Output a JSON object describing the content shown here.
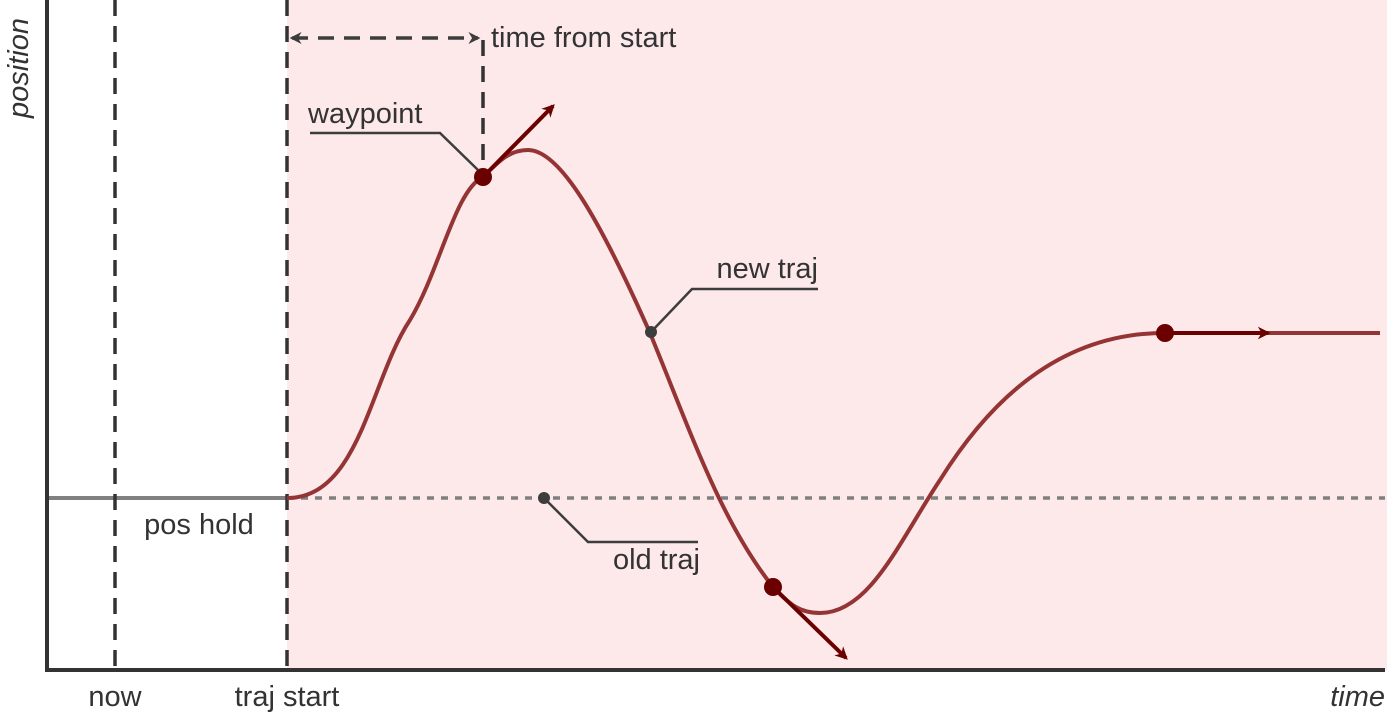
{
  "labels": {
    "y_axis": "position",
    "x_axis": "time",
    "now": "now",
    "traj_start": "traj start",
    "time_from_start": "time from start",
    "waypoint": "waypoint",
    "new_traj": "new traj",
    "old_traj": "old traj",
    "pos_hold": "pos hold"
  },
  "colors": {
    "background_region": "#fde8ea",
    "trajectory": "#943434",
    "waypoint": "#6b0000",
    "old_traj": "#808080",
    "axes": "#333333"
  }
}
